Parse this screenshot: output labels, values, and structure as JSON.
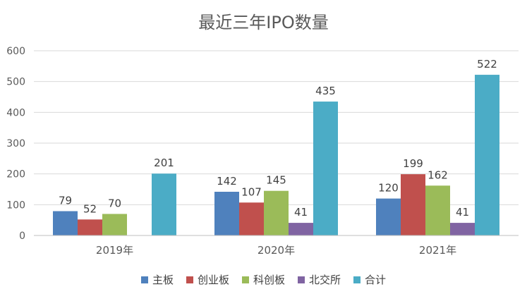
{
  "chart_data": {
    "type": "bar",
    "title": "最近三年IPO数量",
    "categories": [
      "2019年",
      "2020年",
      "2021年"
    ],
    "series": [
      {
        "name": "主板",
        "values": [
          79,
          142,
          120
        ],
        "color": "#4F81BD"
      },
      {
        "name": "创业板",
        "values": [
          52,
          107,
          199
        ],
        "color": "#C0504D"
      },
      {
        "name": "科创板",
        "values": [
          70,
          145,
          162
        ],
        "color": "#9BBB59"
      },
      {
        "name": "北交所",
        "values": [
          null,
          41,
          41
        ],
        "color": "#8064A2"
      },
      {
        "name": "合计",
        "values": [
          201,
          435,
          522
        ],
        "color": "#4BACC6"
      }
    ],
    "y_ticks": [
      0,
      100,
      200,
      300,
      400,
      500,
      600
    ],
    "ylim": [
      0,
      600
    ],
    "grid": true,
    "legend_position": "bottom",
    "data_labels": true
  }
}
